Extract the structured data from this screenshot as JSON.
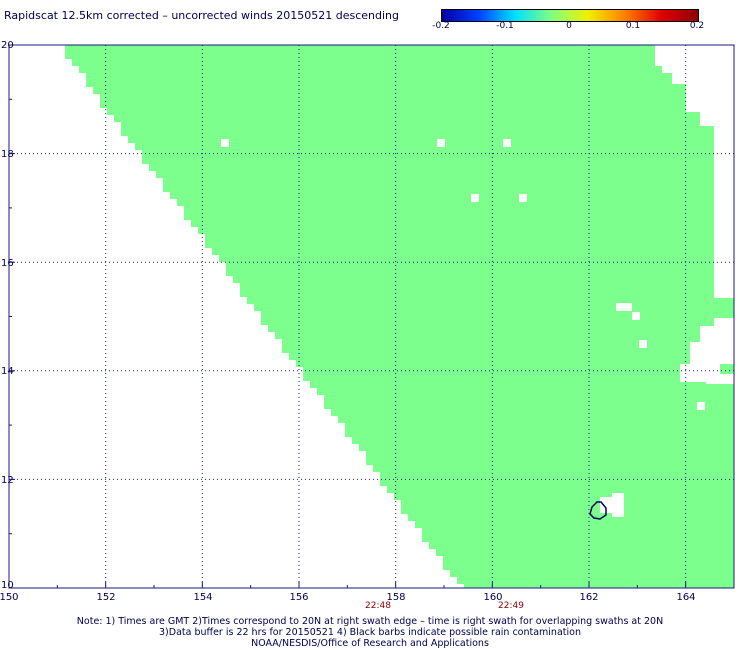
{
  "title": "Rapidscat 12.5km corrected – uncorrected winds 20150521 descending",
  "colorbar": {
    "ticks": [
      "-0.2",
      "-0.1",
      "0",
      "0.1",
      "0.2"
    ],
    "range": [
      -0.2,
      0.2
    ],
    "colors": [
      "#0000a0",
      "#0040ff",
      "#00e0ff",
      "#80ff80",
      "#f0f000",
      "#ff8000",
      "#e00000",
      "#900000"
    ]
  },
  "map": {
    "lat_labels": [
      "20",
      "18",
      "16",
      "14",
      "12",
      "10"
    ],
    "lon_labels": [
      "150",
      "152",
      "154",
      "156",
      "158",
      "160",
      "162",
      "164"
    ],
    "lat_range": [
      10,
      20
    ],
    "lon_range": [
      150,
      165
    ],
    "swath_color": "#7cff8c",
    "grid_color": "#1a1a80",
    "times": [
      "22:48",
      "22:49"
    ]
  },
  "notes": [
    "Note: 1) Times are GMT 2)Times correspond to 20N at right swath edge – time is right swath for overlapping swaths at 20N",
    "3)Data buffer is 22 hrs for 20150521 4) Black barbs indicate possible rain contamination",
    "NOAA/NESDIS/Office of Research and Applications"
  ]
}
